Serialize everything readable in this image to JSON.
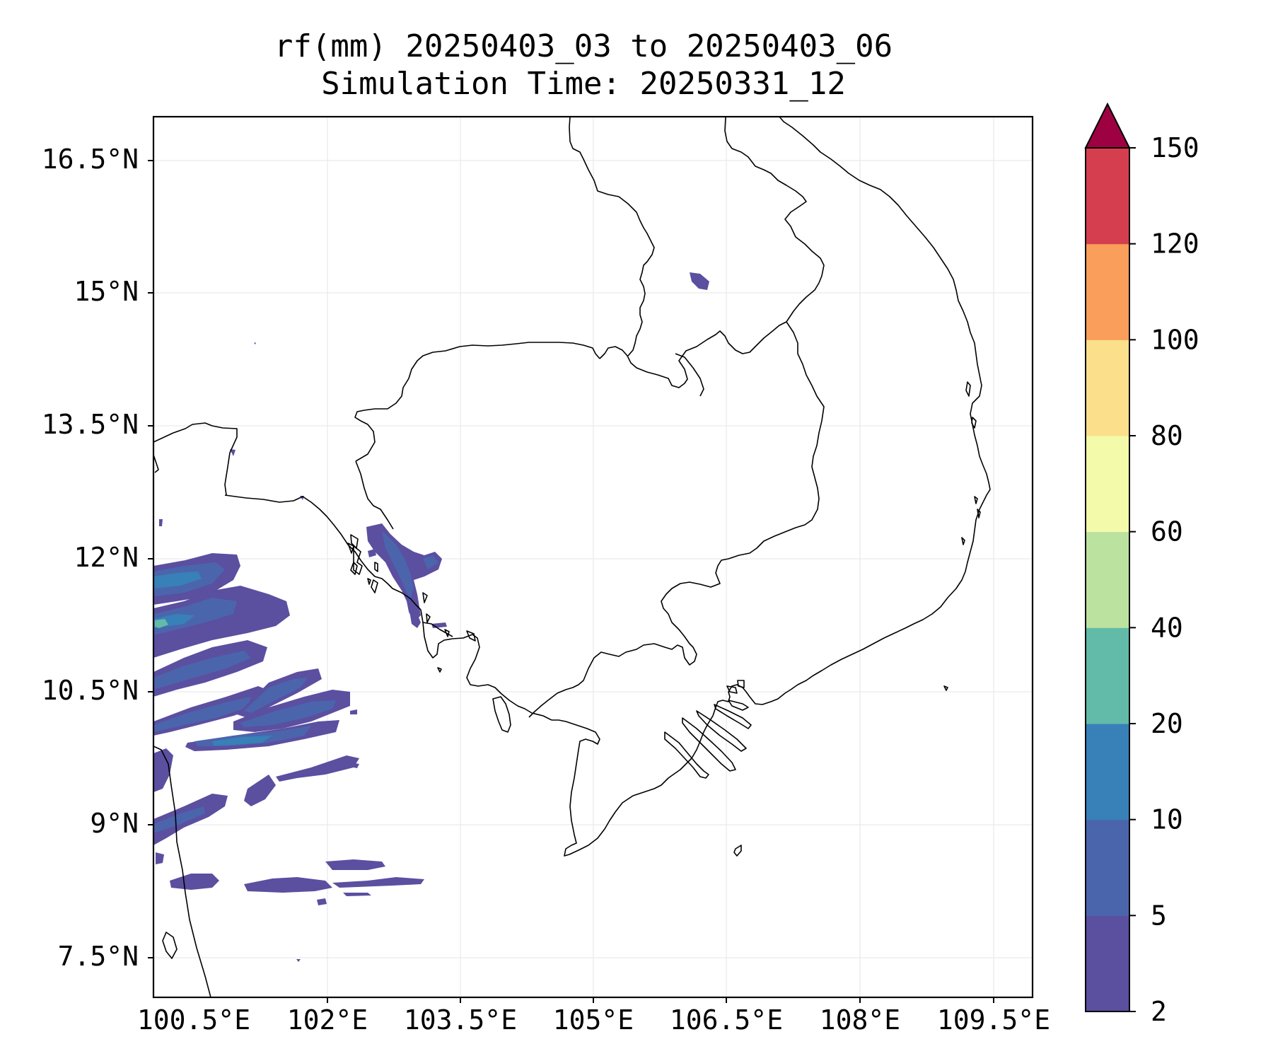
{
  "title_line1": "rf(mm) 20250403_03 to 20250403_06",
  "title_line2": "Simulation Time: 20250331_12",
  "lat_labels": [
    "16.5°N",
    "15°N",
    "13.5°N",
    "12°N",
    "10.5°N",
    "9°N",
    "7.5°N"
  ],
  "lon_labels": [
    "100.5°E",
    "102°E",
    "103.5°E",
    "105°E",
    "106.5°E",
    "108°E",
    "109.5°E"
  ],
  "map_extent": {
    "lon_min": 100.05,
    "lon_max": 109.95,
    "lat_min": 7.05,
    "lat_max": 16.95
  },
  "colorbar": {
    "levels": [
      2,
      5,
      10,
      20,
      40,
      60,
      80,
      100,
      120,
      150
    ],
    "tick_labels": [
      "2",
      "5",
      "10",
      "20",
      "40",
      "60",
      "80",
      "100",
      "120",
      "150"
    ],
    "colors": [
      "#5b4fa0",
      "#4b65ad",
      "#3880b8",
      "#62bba8",
      "#bce2a0",
      "#f3fbaa",
      "#fcdf8b",
      "#f99e5b",
      "#d53e4f"
    ],
    "extend_color": "#9e0142"
  },
  "rain_colors": {
    "c1": "#5b4fa0",
    "c2": "#4b65ad",
    "c3": "#3880b8",
    "c4": "#62bba8"
  }
}
